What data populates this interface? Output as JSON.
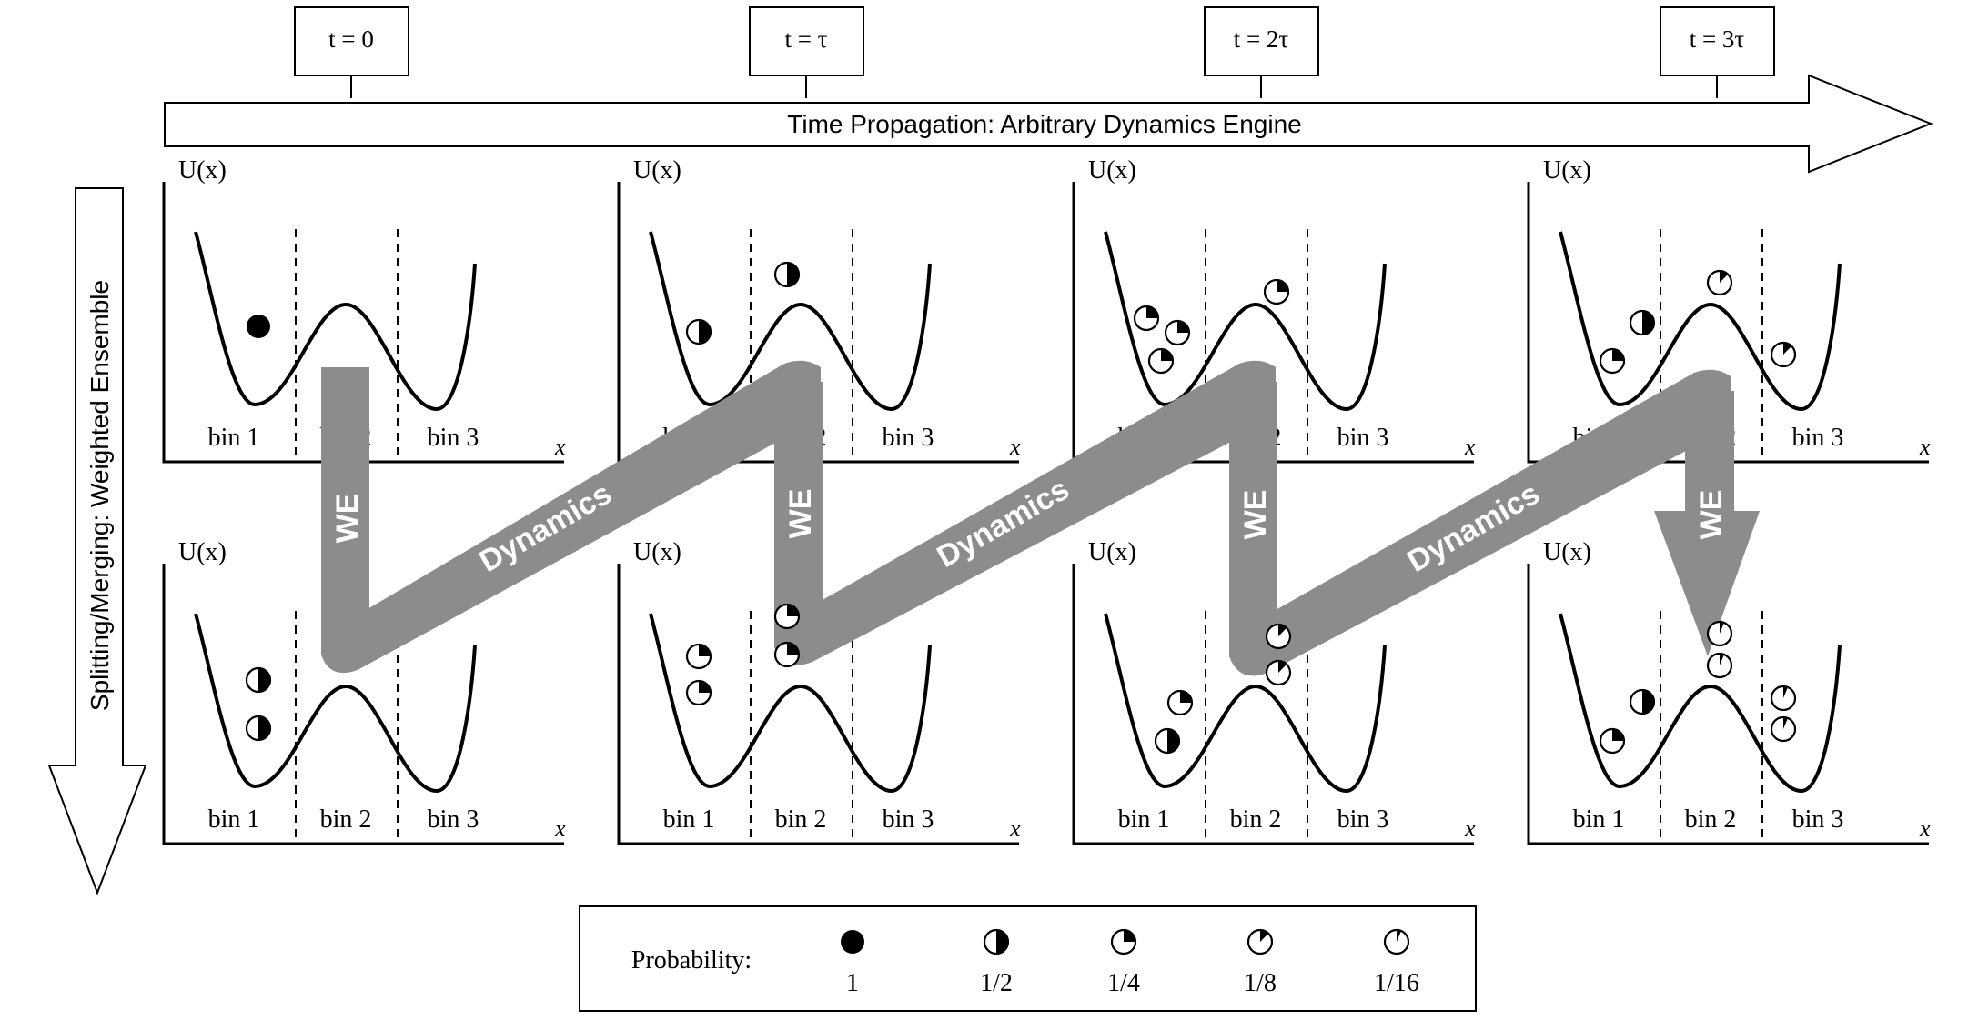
{
  "time_labels": [
    "t = 0",
    "t = τ",
    "t = 2τ",
    "t = 3τ"
  ],
  "time_arrow_label": "Time Propagation: Arbitrary Dynamics Engine",
  "vertical_arrow_label": "Splitting/Merging: Weighted Ensemble",
  "panel": {
    "y_axis_label": "U(x)",
    "x_axis_label": "x",
    "bin_labels": [
      "bin 1",
      "bin 2",
      "bin 3"
    ]
  },
  "we_label": "WE",
  "dynamics_label": "Dynamics",
  "legend": {
    "title": "Probability:",
    "items": [
      {
        "label": "1",
        "fraction": 1
      },
      {
        "label": "1/2",
        "fraction": 0.5
      },
      {
        "label": "1/4",
        "fraction": 0.25
      },
      {
        "label": "1/8",
        "fraction": 0.125
      },
      {
        "label": "1/16",
        "fraction": 0.0625
      }
    ]
  },
  "colors": {
    "flow_arrow": "#8c8c8c",
    "line": "#000000",
    "background": "#ffffff"
  },
  "panels": [
    {
      "row": "top",
      "column": "t = 0",
      "walker_weights": [
        1
      ]
    },
    {
      "row": "top",
      "column": "t = τ",
      "walker_weights": [
        0.5,
        0.5
      ]
    },
    {
      "row": "top",
      "column": "t = 2τ",
      "walker_weights": [
        0.25,
        0.25,
        0.25,
        0.25
      ]
    },
    {
      "row": "top",
      "column": "t = 3τ",
      "walker_weights": [
        0.25,
        0.5,
        0.125,
        0.125
      ]
    },
    {
      "row": "bottom",
      "column": "t = 0",
      "walker_weights": [
        0.5,
        0.5
      ]
    },
    {
      "row": "bottom",
      "column": "t = τ",
      "walker_weights": [
        0.25,
        0.25,
        0.25,
        0.25
      ]
    },
    {
      "row": "bottom",
      "column": "t = 2τ",
      "walker_weights": [
        0.25,
        0.5,
        0.125,
        0.125
      ]
    },
    {
      "row": "bottom",
      "column": "t = 3τ",
      "walker_weights": [
        0.25,
        0.5,
        0.0625,
        0.0625,
        0.0625,
        0.0625
      ]
    }
  ]
}
